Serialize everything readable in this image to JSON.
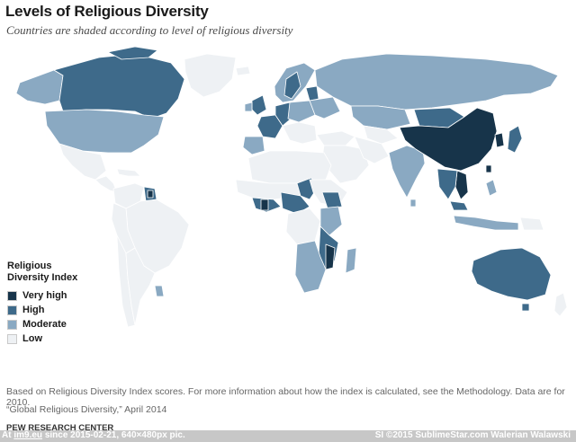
{
  "header": {
    "title": "Levels of Religious Diversity",
    "subtitle": "Countries are shaded according to level of religious diversity"
  },
  "legend": {
    "title_line1": "Religious",
    "title_line2": "Diversity Index",
    "items": [
      {
        "label": "Very high",
        "color": "#17344a"
      },
      {
        "label": "High",
        "color": "#3e6a8a"
      },
      {
        "label": "Moderate",
        "color": "#8aa9c2"
      },
      {
        "label": "Low",
        "color": "#eef1f4"
      }
    ]
  },
  "colors": {
    "ocean": "#ffffff",
    "border": "#ffffff",
    "very_high": "#17344a",
    "high": "#3e6a8a",
    "moderate": "#8aa9c2",
    "low": "#eef1f4"
  },
  "footnotes": {
    "note": "Based on Religious Diversity Index scores. For more information about how the index is calculated, see the Methodology. Data are for 2010.",
    "source": "“Global Religious Diversity,” April 2014",
    "org": "PEW RESEARCH CENTER"
  },
  "footer": {
    "prefix": "At",
    "site": "im9.eu",
    "since": "since 2015-02-21, 640×480px pic.",
    "credit": "SI ©2015 SublimeStar.com Walerian Walawski"
  }
}
